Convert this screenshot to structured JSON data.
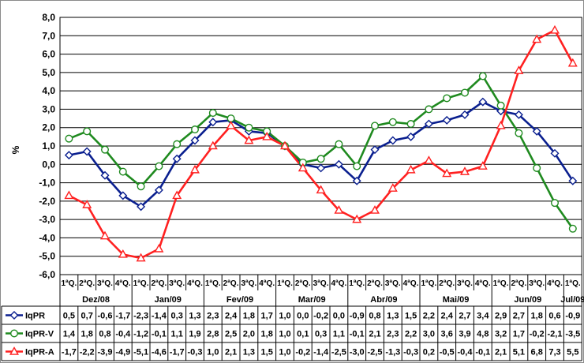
{
  "chart_data": {
    "type": "line",
    "ylabel": "%",
    "ylim": [
      -6.0,
      8.0
    ],
    "ytick_step": 1.0,
    "grid": true,
    "categories": [
      "1ªQ.",
      "2ªQ.",
      "3ªQ.",
      "4ªQ.",
      "1ªQ.",
      "2ªQ.",
      "3ªQ.",
      "4ªQ.",
      "1ªQ.",
      "2ªQ.",
      "3ªQ.",
      "4ªQ.",
      "1ªQ.",
      "2ªQ.",
      "3ªQ.",
      "4ªQ.",
      "1ªQ.",
      "2ªQ.",
      "3ªQ.",
      "4ªQ.",
      "1ªQ.",
      "2ªQ.",
      "3ªQ.",
      "4ªQ.",
      "1ªQ.",
      "2ªQ.",
      "3ªQ.",
      "4ªQ.",
      "1ªQ."
    ],
    "month_groups": [
      {
        "label": "Dez/08",
        "span": 4
      },
      {
        "label": "Jan/09",
        "span": 4
      },
      {
        "label": "Fev/09",
        "span": 4
      },
      {
        "label": "Mar/09",
        "span": 4
      },
      {
        "label": "Abr/09",
        "span": 4
      },
      {
        "label": "Mai/09",
        "span": 4
      },
      {
        "label": "Jun/09",
        "span": 4
      },
      {
        "label": "Jul/09",
        "span": 1
      }
    ],
    "series": [
      {
        "name": "IqPR",
        "color": "#0a1f8f",
        "marker": "diamond",
        "values": [
          0.5,
          0.7,
          -0.6,
          -1.7,
          -2.3,
          -1.4,
          0.3,
          1.3,
          2.3,
          2.4,
          1.8,
          1.7,
          1.0,
          0.0,
          -0.2,
          0.0,
          -0.9,
          0.8,
          1.3,
          1.5,
          2.2,
          2.4,
          2.7,
          3.4,
          2.9,
          2.7,
          1.8,
          0.6,
          -0.9
        ],
        "labels": [
          "0,5",
          "0,7",
          "-0,6",
          "-1,7",
          "-2,3",
          "-1,4",
          "0,3",
          "1,3",
          "2,3",
          "2,4",
          "1,8",
          "1,7",
          "1,0",
          "0,0",
          "-0,2",
          "0,0",
          "-0,9",
          "0,8",
          "1,3",
          "1,5",
          "2,2",
          "2,4",
          "2,7",
          "3,4",
          "2,9",
          "2,7",
          "1,8",
          "0,6",
          "-0,9"
        ]
      },
      {
        "name": "IqPR-V",
        "color": "#1f8a1f",
        "marker": "circle",
        "values": [
          1.4,
          1.8,
          0.8,
          -0.4,
          -1.2,
          -0.1,
          1.1,
          1.9,
          2.8,
          2.5,
          2.0,
          1.8,
          1.0,
          0.1,
          0.3,
          1.1,
          -0.1,
          2.1,
          2.3,
          2.2,
          3.0,
          3.6,
          3.9,
          4.8,
          3.2,
          1.7,
          -0.2,
          -2.1,
          -3.5
        ],
        "labels": [
          "1,4",
          "1,8",
          "0,8",
          "-0,4",
          "-1,2",
          "-0,1",
          "1,1",
          "1,9",
          "2,8",
          "2,5",
          "2,0",
          "1,8",
          "1,0",
          "0,1",
          "0,3",
          "1,1",
          "-0,1",
          "2,1",
          "2,3",
          "2,2",
          "3,0",
          "3,6",
          "3,9",
          "4,8",
          "3,2",
          "1,7",
          "-0,2",
          "-2,1",
          "-3,5"
        ]
      },
      {
        "name": "IqPR-A",
        "color": "#ff2020",
        "marker": "triangle",
        "values": [
          -1.7,
          -2.2,
          -3.9,
          -4.9,
          -5.1,
          -4.6,
          -1.7,
          -0.3,
          1.0,
          2.1,
          1.3,
          1.5,
          1.0,
          -0.2,
          -1.4,
          -2.5,
          -3.0,
          -2.5,
          -1.3,
          -0.3,
          0.2,
          -0.5,
          -0.4,
          -0.1,
          2.1,
          5.1,
          6.8,
          7.3,
          5.5
        ],
        "labels": [
          "-1,7",
          "-2,2",
          "-3,9",
          "-4,9",
          "-5,1",
          "-4,6",
          "-1,7",
          "-0,3",
          "1,0",
          "2,1",
          "1,3",
          "1,5",
          "1,0",
          "-0,2",
          "-1,4",
          "-2,5",
          "-3,0",
          "-2,5",
          "-1,3",
          "-0,3",
          "0,2",
          "-0,5",
          "-0,4",
          "-0,1",
          "2,1",
          "5,1",
          "6,8",
          "7,3",
          "5,5"
        ]
      }
    ]
  }
}
